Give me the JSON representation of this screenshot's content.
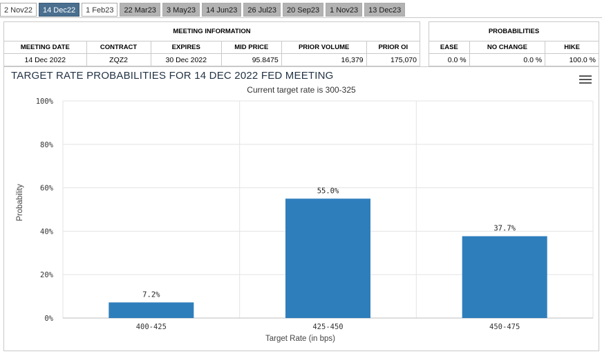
{
  "tabs": [
    {
      "label": "2 Nov22",
      "state": "white"
    },
    {
      "label": "14 Dec22",
      "state": "active"
    },
    {
      "label": "1 Feb23",
      "state": "white"
    },
    {
      "label": "22 Mar23",
      "state": "gray"
    },
    {
      "label": "3 May23",
      "state": "gray"
    },
    {
      "label": "14 Jun23",
      "state": "gray"
    },
    {
      "label": "26 Jul23",
      "state": "gray"
    },
    {
      "label": "20 Sep23",
      "state": "gray"
    },
    {
      "label": "1 Nov23",
      "state": "gray"
    },
    {
      "label": "13 Dec23",
      "state": "gray"
    }
  ],
  "meeting_info": {
    "header": "MEETING INFORMATION",
    "columns": [
      "MEETING DATE",
      "CONTRACT",
      "EXPIRES",
      "MID PRICE",
      "PRIOR VOLUME",
      "PRIOR OI"
    ],
    "row": [
      "14 Dec 2022",
      "ZQZ2",
      "30 Dec 2022",
      "95.8475",
      "16,379",
      "175,070"
    ]
  },
  "probabilities": {
    "header": "PROBABILITIES",
    "columns": [
      "EASE",
      "NO CHANGE",
      "HIKE"
    ],
    "row": [
      "0.0 %",
      "0.0 %",
      "100.0 %"
    ]
  },
  "chart": {
    "title": "TARGET RATE PROBABILITIES FOR 14 DEC 2022 FED MEETING",
    "subtitle": "Current target rate is 300-325"
  },
  "chart_data": {
    "type": "bar",
    "categories": [
      "400-425",
      "425-450",
      "450-475"
    ],
    "values": [
      7.2,
      55.0,
      37.7
    ],
    "value_labels": [
      "7.2%",
      "55.0%",
      "37.7%"
    ],
    "title": "TARGET RATE PROBABILITIES FOR 14 DEC 2022 FED MEETING",
    "subtitle": "Current target rate is 300-325",
    "xlabel": "Target Rate (in bps)",
    "ylabel": "Probability",
    "ylim": [
      0,
      100
    ],
    "yticks": [
      0,
      20,
      40,
      60,
      80,
      100
    ],
    "ytick_labels": [
      "0%",
      "20%",
      "40%",
      "60%",
      "80%",
      "100%"
    ],
    "bar_color": "#2f7ebc",
    "grid": true,
    "legend": "none"
  }
}
